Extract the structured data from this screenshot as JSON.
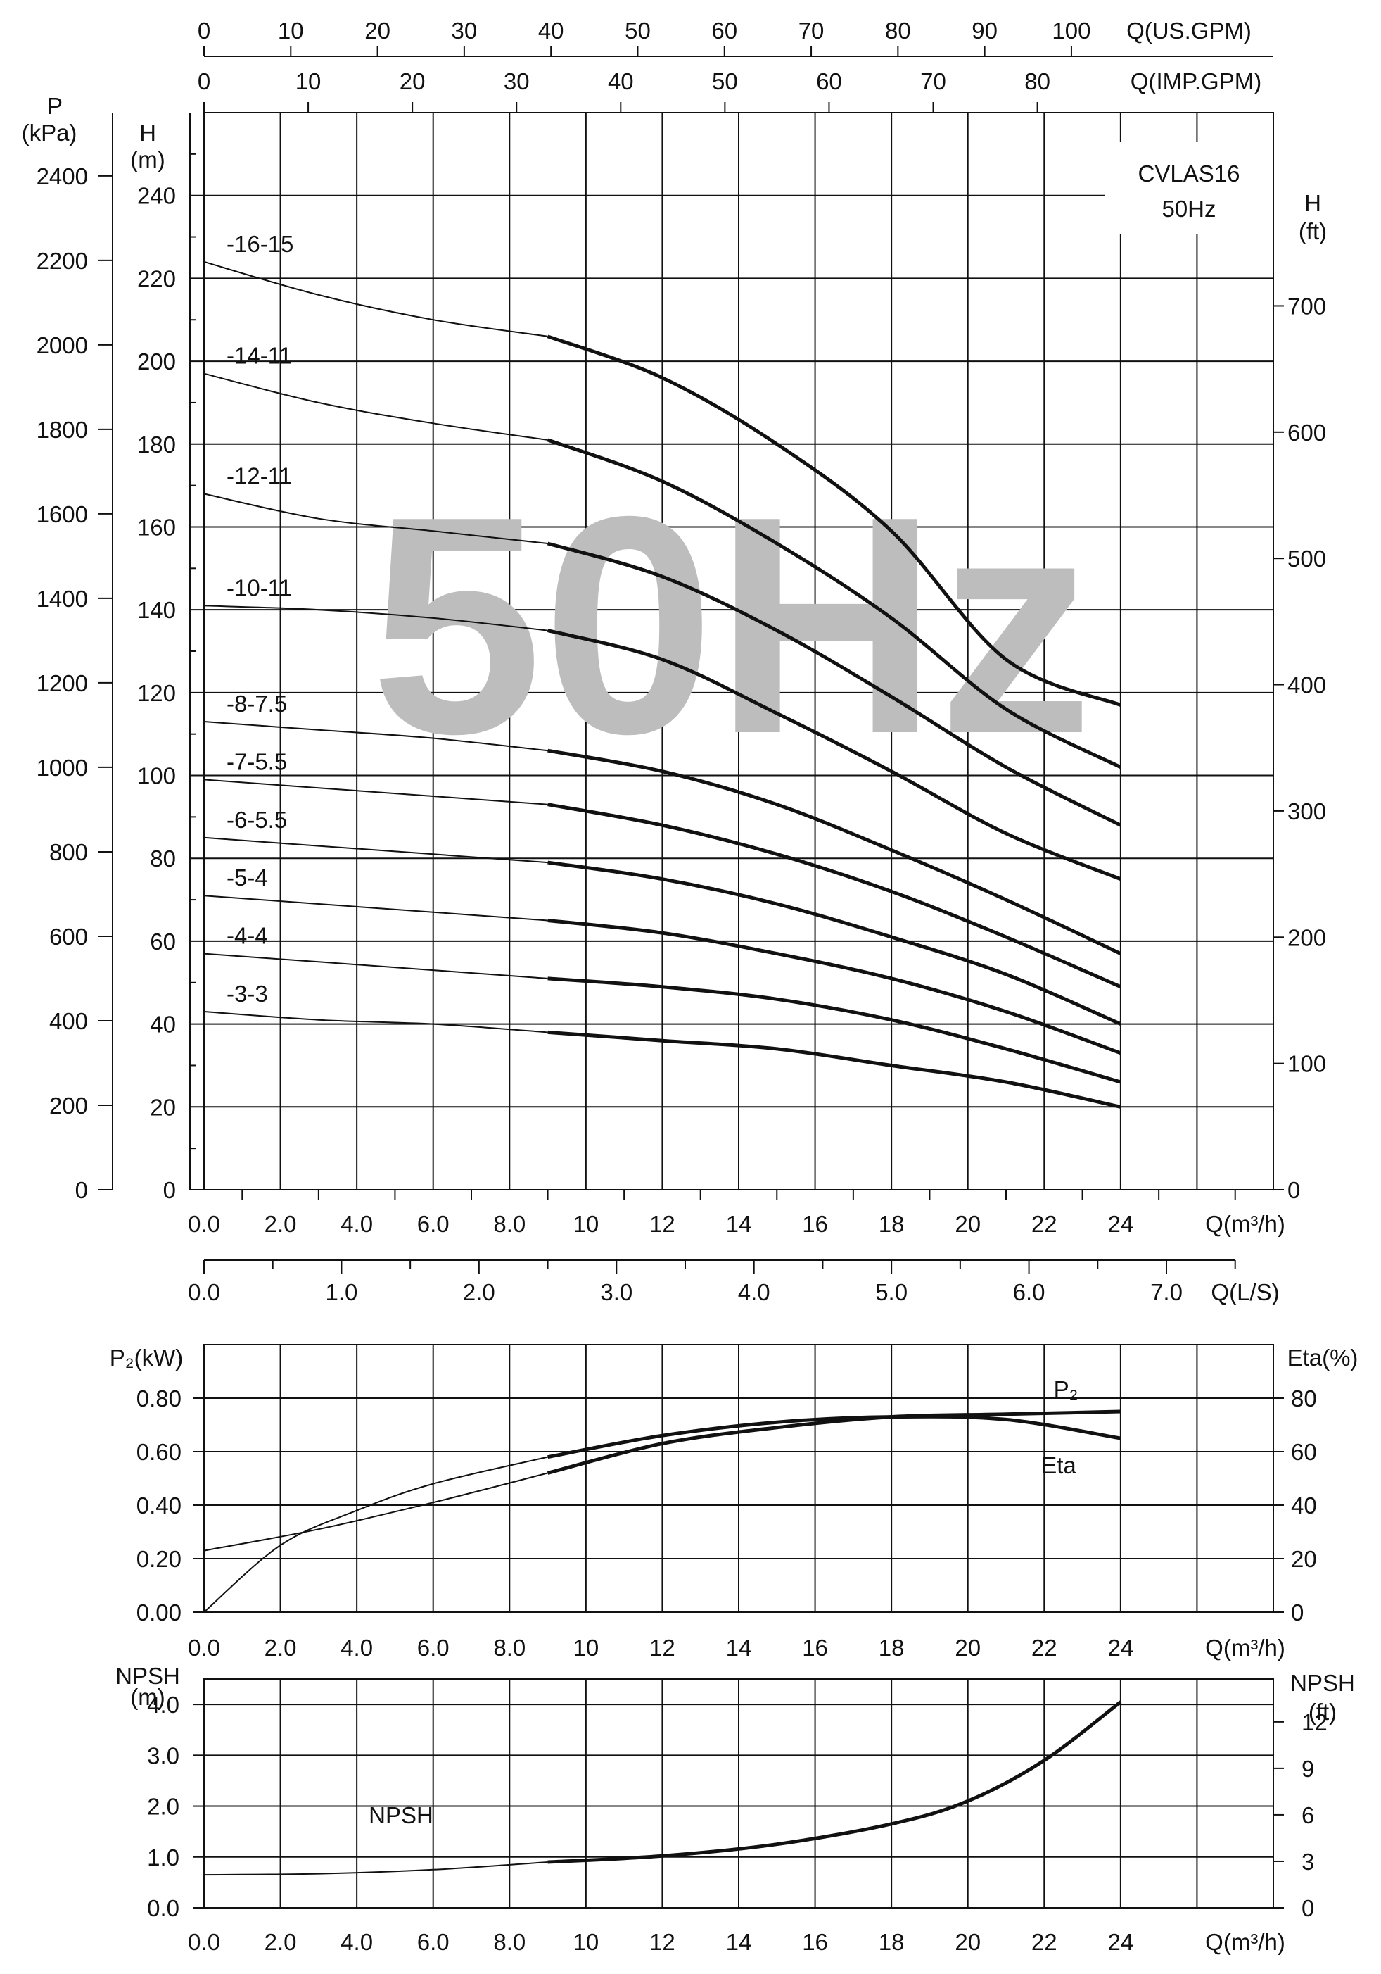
{
  "chart_data": [
    {
      "type": "line",
      "title": "CVLAS16",
      "subtitle": "50Hz",
      "watermark": "50Hz",
      "xlabel": "Q(m³/h)",
      "x_ticks": [
        "0.0",
        "2.0",
        "4.0",
        "6.0",
        "8.0",
        "10",
        "12",
        "14",
        "16",
        "18",
        "20",
        "22",
        "24"
      ],
      "xlim": [
        0,
        28
      ],
      "ylabel_left_top": "H",
      "ylabel_left_bottom": "(m)",
      "ylabel_pressure_top": "P",
      "ylabel_pressure_bottom": "(kPa)",
      "ylabel_right_top": "H",
      "ylabel_right_bottom": "(ft)",
      "ylim": [
        0,
        260
      ],
      "y_ticks": [
        "0",
        "20",
        "40",
        "60",
        "80",
        "100",
        "120",
        "140",
        "160",
        "180",
        "200",
        "220",
        "240"
      ],
      "pressure_ticks": [
        "0",
        "200",
        "400",
        "600",
        "800",
        "1000",
        "1200",
        "1400",
        "1600",
        "1800",
        "2000",
        "2200",
        "2400"
      ],
      "ft_ticks": [
        "0",
        "100",
        "200",
        "300",
        "400",
        "500",
        "600",
        "700"
      ],
      "secondary_axes": [
        {
          "label": "Q(US.GPM)",
          "ticks": [
            "0",
            "10",
            "20",
            "30",
            "40",
            "50",
            "60",
            "70",
            "80",
            "90",
            "100"
          ]
        },
        {
          "label": "Q(IMP.GPM)",
          "ticks": [
            "0",
            "10",
            "20",
            "30",
            "40",
            "50",
            "60",
            "70",
            "80"
          ]
        },
        {
          "label": "Q(L/S)",
          "ticks": [
            "0.0",
            "1.0",
            "2.0",
            "3.0",
            "4.0",
            "5.0",
            "6.0",
            "7.0"
          ]
        }
      ],
      "operating_range_start": 9,
      "grid": true,
      "series": [
        {
          "name": "-16-15",
          "x": [
            0,
            3,
            6,
            9,
            12,
            15,
            18,
            21,
            24
          ],
          "y": [
            224,
            216,
            210,
            206,
            196,
            180,
            159,
            128,
            117
          ]
        },
        {
          "name": "-14-11",
          "x": [
            0,
            3,
            6,
            9,
            12,
            15,
            18,
            21,
            24
          ],
          "y": [
            197,
            190,
            185,
            181,
            171,
            156,
            138,
            116,
            102
          ]
        },
        {
          "name": "-12-11",
          "x": [
            0,
            3,
            6,
            9,
            12,
            15,
            18,
            21,
            24
          ],
          "y": [
            168,
            162,
            159,
            156,
            148,
            135,
            119,
            102,
            88
          ]
        },
        {
          "name": "-10-11",
          "x": [
            0,
            3,
            6,
            9,
            12,
            15,
            18,
            21,
            24
          ],
          "y": [
            141,
            140,
            138,
            135,
            128,
            115,
            101,
            86,
            75
          ]
        },
        {
          "name": "-8-7.5",
          "x": [
            0,
            3,
            6,
            9,
            12,
            15,
            18,
            21,
            24
          ],
          "y": [
            113,
            111,
            109,
            106,
            101,
            93,
            82,
            70,
            57
          ]
        },
        {
          "name": "-7-5.5",
          "x": [
            0,
            3,
            6,
            9,
            12,
            15,
            18,
            21,
            24
          ],
          "y": [
            99,
            97,
            95,
            93,
            88,
            81,
            72,
            61,
            49
          ]
        },
        {
          "name": "-6-5.5",
          "x": [
            0,
            3,
            6,
            9,
            12,
            15,
            18,
            21,
            24
          ],
          "y": [
            85,
            83,
            81,
            79,
            75,
            69,
            61,
            52,
            40
          ]
        },
        {
          "name": "-5-4",
          "x": [
            0,
            3,
            6,
            9,
            12,
            15,
            18,
            21,
            24
          ],
          "y": [
            71,
            69,
            67,
            65,
            62,
            57,
            51,
            43,
            33
          ]
        },
        {
          "name": "-4-4",
          "x": [
            0,
            3,
            6,
            9,
            12,
            15,
            18,
            21,
            24
          ],
          "y": [
            57,
            55,
            53,
            51,
            49,
            46,
            41,
            34,
            26
          ]
        },
        {
          "name": "-3-3",
          "x": [
            0,
            3,
            6,
            9,
            12,
            15,
            18,
            21,
            24
          ],
          "y": [
            43,
            41,
            40,
            38,
            36,
            34,
            30,
            26,
            20
          ]
        }
      ]
    },
    {
      "type": "line",
      "xlabel": "Q(m³/h)",
      "x_ticks": [
        "0.0",
        "2.0",
        "4.0",
        "6.0",
        "8.0",
        "10",
        "12",
        "14",
        "16",
        "18",
        "20",
        "22",
        "24"
      ],
      "xlim": [
        0,
        28
      ],
      "ylabel": "P₂(kW)",
      "ylim": [
        0,
        1.0
      ],
      "y_ticks": [
        "0.00",
        "0.20",
        "0.40",
        "0.60",
        "0.80"
      ],
      "ylabel_right": "Eta(%)",
      "ylim_right": [
        0,
        100
      ],
      "y_ticks_right": [
        "0",
        "20",
        "40",
        "60",
        "80"
      ],
      "operating_range_start": 9,
      "grid": true,
      "series": [
        {
          "name": "P₂",
          "axis": "left",
          "x": [
            0,
            3,
            6,
            9,
            12,
            15,
            18,
            21,
            24
          ],
          "y": [
            0.23,
            0.31,
            0.41,
            0.52,
            0.63,
            0.69,
            0.73,
            0.74,
            0.75
          ]
        },
        {
          "name": "Eta",
          "axis": "right",
          "x": [
            0,
            2,
            4,
            6,
            9,
            12,
            15,
            18,
            21,
            24
          ],
          "y": [
            0,
            25,
            38,
            48,
            58,
            66,
            71,
            73,
            72,
            65
          ]
        }
      ]
    },
    {
      "type": "line",
      "xlabel": "Q(m³/h)",
      "x_ticks": [
        "0.0",
        "2.0",
        "4.0",
        "6.0",
        "8.0",
        "10",
        "12",
        "14",
        "16",
        "18",
        "20",
        "22",
        "24"
      ],
      "xlim": [
        0,
        28
      ],
      "ylabel_top": "NPSH",
      "ylabel_bottom": "(m)",
      "ylim": [
        0,
        4.5
      ],
      "y_ticks": [
        "0.0",
        "1.0",
        "2.0",
        "3.0",
        "4.0"
      ],
      "ylabel_right_top": "NPSH",
      "ylabel_right_bottom": "(ft)",
      "y_ticks_right": [
        "0",
        "3",
        "6",
        "9",
        "12"
      ],
      "operating_range_start": 9,
      "grid": true,
      "series": [
        {
          "name": "NPSH",
          "x": [
            0,
            3,
            6,
            9,
            12,
            15,
            18,
            20,
            22,
            24
          ],
          "y": [
            0.65,
            0.67,
            0.75,
            0.9,
            1.02,
            1.25,
            1.65,
            2.1,
            2.9,
            4.05
          ]
        }
      ]
    }
  ]
}
